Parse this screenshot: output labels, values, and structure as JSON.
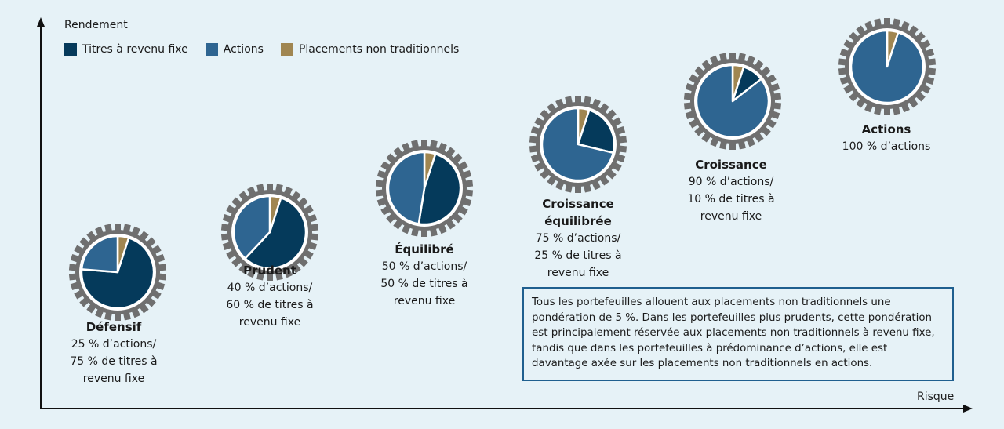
{
  "axes": {
    "y_label": "Rendement",
    "x_label": "Risque"
  },
  "colors": {
    "fixed_income": "#053a5b",
    "equities": "#2e6591",
    "alternatives": "#a08651",
    "gear": "#6f6f6f",
    "background": "#e6f2f7",
    "note_border": "#1f5f8f"
  },
  "legend": [
    {
      "label": "Titres à revenu fixe",
      "color": "#053a5b"
    },
    {
      "label": "Actions",
      "color": "#2e6591"
    },
    {
      "label": "Placements non traditionnels",
      "color": "#a08651"
    }
  ],
  "chart_data": {
    "type": "pie",
    "portfolios": [
      {
        "title": "Défensif",
        "lines": [
          "25 % d’actions/",
          "75 % de titres à",
          "revenu fixe"
        ],
        "alternatives": 5,
        "fixed_income": 71.25,
        "equities": 23.75
      },
      {
        "title": "Prudent",
        "lines": [
          "40 % d’actions/",
          "60 % de titres à",
          "revenu fixe"
        ],
        "alternatives": 5,
        "fixed_income": 57,
        "equities": 38
      },
      {
        "title": "Équilibré",
        "lines": [
          "50 % d’actions/",
          "50 % de titres à",
          "revenu fixe"
        ],
        "alternatives": 5,
        "fixed_income": 47.5,
        "equities": 47.5
      },
      {
        "title_lines": [
          "Croissance",
          "équilibrée"
        ],
        "lines": [
          "75 % d’actions/",
          "25 % de titres à",
          "revenu fixe"
        ],
        "alternatives": 5,
        "fixed_income": 23.75,
        "equities": 71.25
      },
      {
        "title": "Croissance",
        "lines": [
          "90 % d’actions/",
          "10 % de titres à",
          "revenu fixe"
        ],
        "alternatives": 5,
        "fixed_income": 9.5,
        "equities": 85.5
      },
      {
        "title": "Actions",
        "lines": [
          "100 % d’actions"
        ],
        "alternatives": 5,
        "fixed_income": 0,
        "equities": 95
      }
    ]
  },
  "note": "Tous les portefeuilles allouent aux placements non traditionnels une pondération de 5 %. Dans les portefeuilles plus prudents, cette pondération est principalement réservée aux placements non traditionnels à revenu fixe, tandis que dans les portefeuilles à prédominance d’actions, elle est davantage axée sur les placements non traditionnels en actions."
}
